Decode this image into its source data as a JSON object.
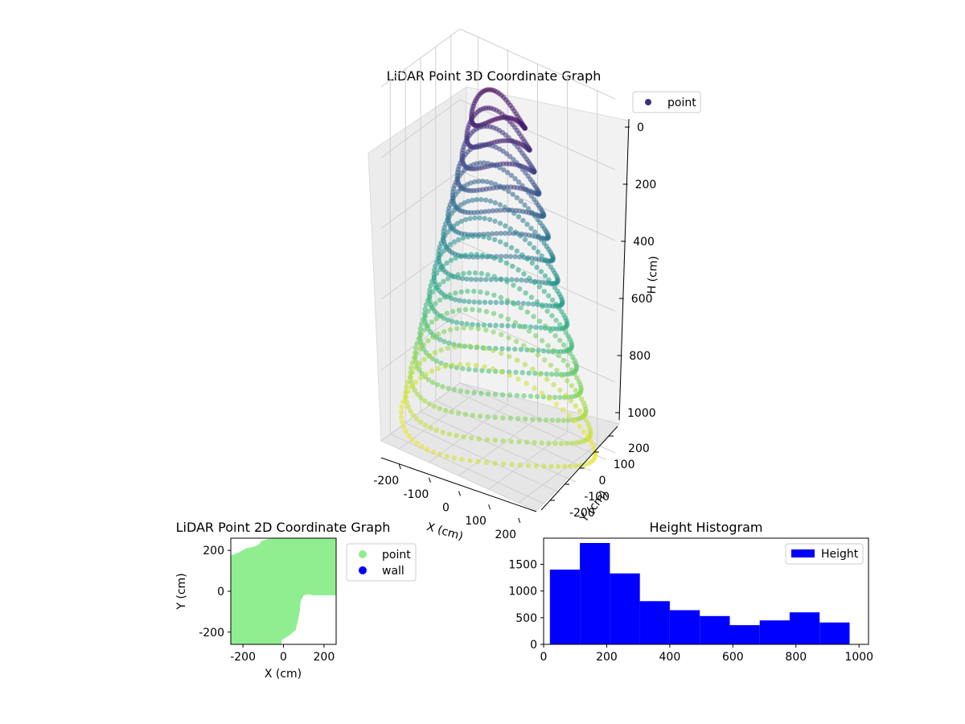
{
  "chart_data": [
    {
      "type": "scatter3d",
      "title": "LiDAR Point 3D Coordinate Graph",
      "xlabel": "X (cm)",
      "ylabel": "Y (cm)",
      "zlabel": "H (cm)",
      "xlim": [
        -260,
        260
      ],
      "ylim": [
        -260,
        260
      ],
      "zlim": [
        1000,
        0
      ],
      "x_ticks": [
        -200,
        -100,
        0,
        100,
        200
      ],
      "y_ticks": [
        -200,
        -100,
        0,
        100,
        200
      ],
      "z_ticks": [
        0,
        200,
        400,
        600,
        800,
        1000
      ],
      "colormap": "viridis (by height)",
      "legend": [
        "point"
      ],
      "legend_color": "#3b2f7f",
      "grid": true
    },
    {
      "type": "scatter",
      "title": "LiDAR Point 2D Coordinate Graph",
      "xlabel": "X (cm)",
      "ylabel": "Y (cm)",
      "xlim": [
        -260,
        260
      ],
      "ylim": [
        -260,
        260
      ],
      "x_ticks": [
        -200,
        0,
        200
      ],
      "y_ticks": [
        -200,
        0,
        200
      ],
      "series": [
        {
          "name": "point",
          "color": "#90ee90"
        },
        {
          "name": "wall",
          "color": "#0000ff"
        }
      ],
      "filled_region_outline": [
        [
          -260,
          175
        ],
        [
          -220,
          190
        ],
        [
          -185,
          210
        ],
        [
          -140,
          220
        ],
        [
          -120,
          230
        ],
        [
          -110,
          245
        ],
        [
          -80,
          255
        ],
        [
          -40,
          260
        ],
        [
          260,
          260
        ],
        [
          260,
          -20
        ],
        [
          150,
          -20
        ],
        [
          120,
          -15
        ],
        [
          100,
          -20
        ],
        [
          85,
          -50
        ],
        [
          80,
          -100
        ],
        [
          70,
          -150
        ],
        [
          60,
          -190
        ],
        [
          30,
          -215
        ],
        [
          -10,
          -240
        ],
        [
          -10,
          -260
        ],
        [
          -260,
          -260
        ]
      ]
    },
    {
      "type": "histogram",
      "title": "Height Histogram",
      "xlabel": "",
      "ylabel": "",
      "xlim": [
        0,
        1030
      ],
      "ylim": [
        0,
        1990
      ],
      "x_ticks": [
        0,
        200,
        400,
        600,
        800,
        1000
      ],
      "y_ticks": [
        0,
        500,
        1000,
        1500
      ],
      "bin_edges": [
        20,
        115,
        210,
        305,
        400,
        495,
        590,
        685,
        780,
        875,
        970
      ],
      "counts": [
        1400,
        1900,
        1330,
        810,
        640,
        530,
        360,
        450,
        600,
        410
      ],
      "legend": [
        "Height"
      ],
      "color": "#0000ff"
    }
  ]
}
